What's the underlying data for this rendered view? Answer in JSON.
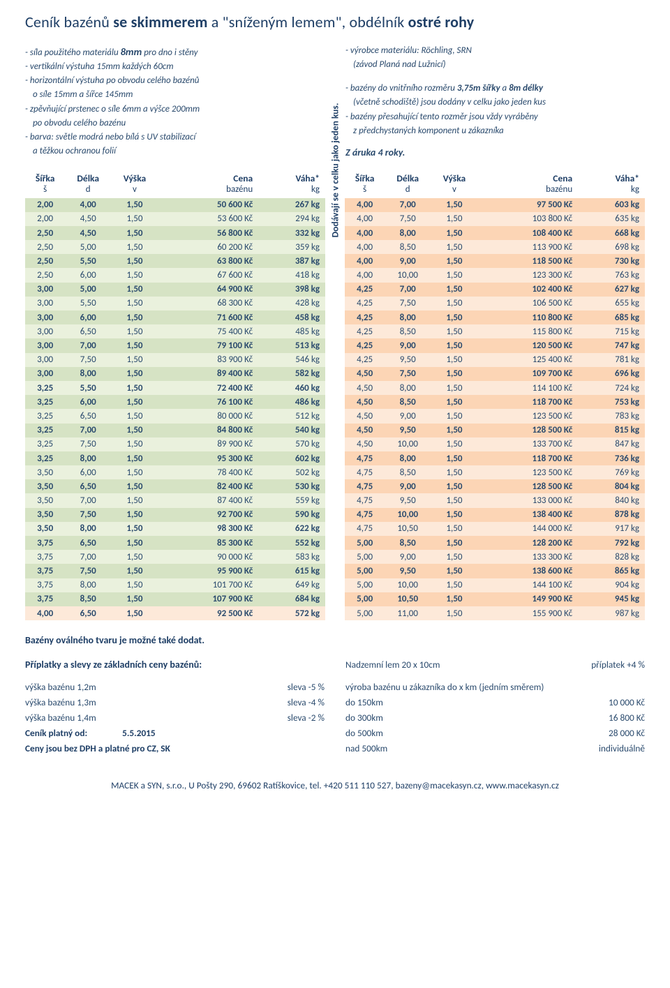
{
  "title_parts": [
    "Ceník bazénů ",
    "se skimmerem",
    " a \"sníženým lemem\", obdélník ",
    "ostré rohy"
  ],
  "specs_left": [
    {
      "t": "- síla použitého materiálu  ",
      "big": "8mm",
      "after": "  pro dno i stěny"
    },
    {
      "t": "- vertikální výstuha 15mm každých 60cm"
    },
    {
      "t": "- horizontální výstuha po obvodu celého bazénů",
      "ind_after": "o síle 15mm a šířce 145mm"
    },
    {
      "t": "- zpěvňující prstenec o síle 6mm a výšce 200mm",
      "ind_after": "po obvodu celého bazénu"
    },
    {
      "t": "- barva: světle modrá nebo bílá s UV stabilizací",
      "ind_after": "a těžkou ochranou folií"
    }
  ],
  "specs_right": [
    {
      "t": "- výrobce materiálu: Röchling, SRN",
      "ind_after": "(závod Planá nad Lužnicí)"
    },
    {
      "gap": true
    },
    {
      "t": "- bazény do vnitřního rozměru  ",
      "bi": "3,75m šířky",
      "mid": "  a  ",
      "bi2": "8m délky",
      "ind_after": "(včetně schodiště) jsou dodány v celku jako jeden kus"
    },
    {
      "t": "- bazény přesahující tento rozměr jsou vždy vyráběny",
      "ind_after": "z předchystaných komponent u zákazníka"
    }
  ],
  "zaruka": "Z áruka 4 roky.",
  "headers": {
    "sirka": "Šířka",
    "delka": "Délka",
    "vyska": "Výška",
    "cena": "Cena",
    "vaha": "Váha*",
    "s": "š",
    "d": "d",
    "v": "v",
    "bazenu": "bazénu",
    "kg": "kg"
  },
  "vtext": "Dodávají se v celku jako jeden kus.",
  "colors": {
    "g_dark": "#d6e3c4",
    "g_light": "#eaf1dd",
    "o_dark": "#fcd5b5",
    "o_light": "#fde9d9"
  },
  "left": [
    {
      "s": "2,00",
      "d": "4,00",
      "v": "1,50",
      "c": "50 600 Kč",
      "w": "267 kg",
      "bold": true,
      "bg": "g_dark"
    },
    {
      "s": "2,00",
      "d": "4,50",
      "v": "1,50",
      "c": "53 600 Kč",
      "w": "294 kg",
      "bg": "g_light"
    },
    {
      "s": "2,50",
      "d": "4,50",
      "v": "1,50",
      "c": "56 800 Kč",
      "w": "332 kg",
      "bold": true,
      "bg": "g_dark"
    },
    {
      "s": "2,50",
      "d": "5,00",
      "v": "1,50",
      "c": "60 200 Kč",
      "w": "359 kg",
      "bg": "g_light"
    },
    {
      "s": "2,50",
      "d": "5,50",
      "v": "1,50",
      "c": "63 800 Kč",
      "w": "387 kg",
      "bold": true,
      "bg": "g_dark"
    },
    {
      "s": "2,50",
      "d": "6,00",
      "v": "1,50",
      "c": "67 600 Kč",
      "w": "418 kg",
      "bg": "g_light"
    },
    {
      "s": "3,00",
      "d": "5,00",
      "v": "1,50",
      "c": "64 900 Kč",
      "w": "398 kg",
      "bold": true,
      "bg": "g_dark"
    },
    {
      "s": "3,00",
      "d": "5,50",
      "v": "1,50",
      "c": "68 300 Kč",
      "w": "428 kg",
      "bg": "g_light"
    },
    {
      "s": "3,00",
      "d": "6,00",
      "v": "1,50",
      "c": "71 600 Kč",
      "w": "458 kg",
      "bold": true,
      "bg": "g_dark"
    },
    {
      "s": "3,00",
      "d": "6,50",
      "v": "1,50",
      "c": "75 400 Kč",
      "w": "485 kg",
      "bg": "g_light"
    },
    {
      "s": "3,00",
      "d": "7,00",
      "v": "1,50",
      "c": "79 100 Kč",
      "w": "513 kg",
      "bold": true,
      "bg": "g_dark"
    },
    {
      "s": "3,00",
      "d": "7,50",
      "v": "1,50",
      "c": "83 900 Kč",
      "w": "546 kg",
      "bg": "g_light"
    },
    {
      "s": "3,00",
      "d": "8,00",
      "v": "1,50",
      "c": "89 400 Kč",
      "w": "582 kg",
      "bold": true,
      "bg": "g_dark"
    },
    {
      "s": "3,25",
      "d": "5,50",
      "v": "1,50",
      "c": "72 400 Kč",
      "w": "460 kg",
      "bold": true,
      "bg": "g_light"
    },
    {
      "s": "3,25",
      "d": "6,00",
      "v": "1,50",
      "c": "76 100 Kč",
      "w": "486 kg",
      "bold": true,
      "bg": "g_dark"
    },
    {
      "s": "3,25",
      "d": "6,50",
      "v": "1,50",
      "c": "80 000 Kč",
      "w": "512 kg",
      "bg": "g_light"
    },
    {
      "s": "3,25",
      "d": "7,00",
      "v": "1,50",
      "c": "84 800 Kč",
      "w": "540 kg",
      "bold": true,
      "bg": "g_dark"
    },
    {
      "s": "3,25",
      "d": "7,50",
      "v": "1,50",
      "c": "89 900 Kč",
      "w": "570 kg",
      "bg": "g_light"
    },
    {
      "s": "3,25",
      "d": "8,00",
      "v": "1,50",
      "c": "95 300 Kč",
      "w": "602 kg",
      "bold": true,
      "bg": "g_dark"
    },
    {
      "s": "3,50",
      "d": "6,00",
      "v": "1,50",
      "c": "78 400 Kč",
      "w": "502 kg",
      "bg": "g_light"
    },
    {
      "s": "3,50",
      "d": "6,50",
      "v": "1,50",
      "c": "82 400 Kč",
      "w": "530 kg",
      "bold": true,
      "bg": "g_dark"
    },
    {
      "s": "3,50",
      "d": "7,00",
      "v": "1,50",
      "c": "87 400 Kč",
      "w": "559 kg",
      "bg": "g_light"
    },
    {
      "s": "3,50",
      "d": "7,50",
      "v": "1,50",
      "c": "92 700 Kč",
      "w": "590 kg",
      "bold": true,
      "bg": "g_dark"
    },
    {
      "s": "3,50",
      "d": "8,00",
      "v": "1,50",
      "c": "98 300 Kč",
      "w": "622 kg",
      "bold": true,
      "bg": "g_light"
    },
    {
      "s": "3,75",
      "d": "6,50",
      "v": "1,50",
      "c": "85 300 Kč",
      "w": "552 kg",
      "bold": true,
      "bg": "g_dark"
    },
    {
      "s": "3,75",
      "d": "7,00",
      "v": "1,50",
      "c": "90 000 Kč",
      "w": "583 kg",
      "bg": "g_light"
    },
    {
      "s": "3,75",
      "d": "7,50",
      "v": "1,50",
      "c": "95 900 Kč",
      "w": "615 kg",
      "bold": true,
      "bg": "g_dark"
    },
    {
      "s": "3,75",
      "d": "8,00",
      "v": "1,50",
      "c": "101 700 Kč",
      "w": "649 kg",
      "bg": "g_light"
    },
    {
      "s": "3,75",
      "d": "8,50",
      "v": "1,50",
      "c": "107 900 Kč",
      "w": "684 kg",
      "bold": true,
      "bg": "g_dark"
    },
    {
      "s": "4,00",
      "d": "6,50",
      "v": "1,50",
      "c": "92 500 Kč",
      "w": "572 kg",
      "bold": true,
      "bg": "o_light"
    }
  ],
  "right": [
    {
      "s": "4,00",
      "d": "7,00",
      "v": "1,50",
      "c": "97 500 Kč",
      "w": "603 kg",
      "bold": true,
      "bg": "o_dark"
    },
    {
      "s": "4,00",
      "d": "7,50",
      "v": "1,50",
      "c": "103 800 Kč",
      "w": "635 kg",
      "bg": "o_light"
    },
    {
      "s": "4,00",
      "d": "8,00",
      "v": "1,50",
      "c": "108 400 Kč",
      "w": "668 kg",
      "bold": true,
      "bg": "o_dark"
    },
    {
      "s": "4,00",
      "d": "8,50",
      "v": "1,50",
      "c": "113 900 Kč",
      "w": "698 kg",
      "bg": "o_light"
    },
    {
      "s": "4,00",
      "d": "9,00",
      "v": "1,50",
      "c": "118 500 Kč",
      "w": "730 kg",
      "bold": true,
      "bg": "o_dark"
    },
    {
      "s": "4,00",
      "d": "10,00",
      "v": "1,50",
      "c": "123 300 Kč",
      "w": "763 kg",
      "bg": "o_light"
    },
    {
      "s": "4,25",
      "d": "7,00",
      "v": "1,50",
      "c": "102 400 Kč",
      "w": "627 kg",
      "bold": true,
      "bg": "o_dark"
    },
    {
      "s": "4,25",
      "d": "7,50",
      "v": "1,50",
      "c": "106 500 Kč",
      "w": "655 kg",
      "bg": "o_light"
    },
    {
      "s": "4,25",
      "d": "8,00",
      "v": "1,50",
      "c": "110 800 Kč",
      "w": "685 kg",
      "bold": true,
      "bg": "o_dark"
    },
    {
      "s": "4,25",
      "d": "8,50",
      "v": "1,50",
      "c": "115 800 Kč",
      "w": "715 kg",
      "bg": "o_light"
    },
    {
      "s": "4,25",
      "d": "9,00",
      "v": "1,50",
      "c": "120 500 Kč",
      "w": "747 kg",
      "bold": true,
      "bg": "o_dark"
    },
    {
      "s": "4,25",
      "d": "9,50",
      "v": "1,50",
      "c": "125 400 Kč",
      "w": "781 kg",
      "bg": "o_light"
    },
    {
      "s": "4,50",
      "d": "7,50",
      "v": "1,50",
      "c": "109 700 Kč",
      "w": "696 kg",
      "bold": true,
      "bg": "o_dark"
    },
    {
      "s": "4,50",
      "d": "8,00",
      "v": "1,50",
      "c": "114 100 Kč",
      "w": "724 kg",
      "bg": "o_light"
    },
    {
      "s": "4,50",
      "d": "8,50",
      "v": "1,50",
      "c": "118 700 Kč",
      "w": "753 kg",
      "bold": true,
      "bg": "o_dark"
    },
    {
      "s": "4,50",
      "d": "9,00",
      "v": "1,50",
      "c": "123 500 Kč",
      "w": "783 kg",
      "bg": "o_light"
    },
    {
      "s": "4,50",
      "d": "9,50",
      "v": "1,50",
      "c": "128 500 Kč",
      "w": "815 kg",
      "bold": true,
      "bg": "o_dark"
    },
    {
      "s": "4,50",
      "d": "10,00",
      "v": "1,50",
      "c": "133 700 Kč",
      "w": "847 kg",
      "bg": "o_light"
    },
    {
      "s": "4,75",
      "d": "8,00",
      "v": "1,50",
      "c": "118 700 Kč",
      "w": "736 kg",
      "bold": true,
      "bg": "o_dark"
    },
    {
      "s": "4,75",
      "d": "8,50",
      "v": "1,50",
      "c": "123 500 Kč",
      "w": "769 kg",
      "bg": "o_light"
    },
    {
      "s": "4,75",
      "d": "9,00",
      "v": "1,50",
      "c": "128 500 Kč",
      "w": "804 kg",
      "bold": true,
      "bg": "o_dark"
    },
    {
      "s": "4,75",
      "d": "9,50",
      "v": "1,50",
      "c": "133 000 Kč",
      "w": "840 kg",
      "bg": "o_light"
    },
    {
      "s": "4,75",
      "d": "10,00",
      "v": "1,50",
      "c": "138 400 Kč",
      "w": "878 kg",
      "bold": true,
      "bg": "o_dark"
    },
    {
      "s": "4,75",
      "d": "10,50",
      "v": "1,50",
      "c": "144 000 Kč",
      "w": "917 kg",
      "bg": "o_light"
    },
    {
      "s": "5,00",
      "d": "8,50",
      "v": "1,50",
      "c": "128 200 Kč",
      "w": "792 kg",
      "bold": true,
      "bg": "o_dark"
    },
    {
      "s": "5,00",
      "d": "9,00",
      "v": "1,50",
      "c": "133 300 Kč",
      "w": "828 kg",
      "bg": "o_light"
    },
    {
      "s": "5,00",
      "d": "9,50",
      "v": "1,50",
      "c": "138 600 Kč",
      "w": "865 kg",
      "bold": true,
      "bg": "o_dark"
    },
    {
      "s": "5,00",
      "d": "10,00",
      "v": "1,50",
      "c": "144 100 Kč",
      "w": "904 kg",
      "bg": "o_light"
    },
    {
      "s": "5,00",
      "d": "10,50",
      "v": "1,50",
      "c": "149 900 Kč",
      "w": "945 kg",
      "bold": true,
      "bg": "o_dark"
    },
    {
      "s": "5,00",
      "d": "11,00",
      "v": "1,50",
      "c": "155 900 Kč",
      "w": "987 kg",
      "bg": "o_light"
    }
  ],
  "oval_note": "Bazény oválného tvaru je možné také dodat.",
  "disc_title": "Příplatky a slevy ze základních ceny bazénů:",
  "disc_left": [
    {
      "l": "výška bazénu 1,2m",
      "r": "sleva   -5 %"
    },
    {
      "l": "výška bazénu 1,3m",
      "r": "sleva   -4 %"
    },
    {
      "l": "výška bazénu 1,4m",
      "r": "sleva   -2 %"
    }
  ],
  "valid_from": {
    "l": "Ceník platný od:",
    "d": "5.5.2015"
  },
  "no_dph": "Ceny jsou bez DPH a platné pro CZ, SK",
  "lem": {
    "l": "Nadzemní lem 20 x 10cm",
    "r": "příplatek  +4 %"
  },
  "travel_title": "výroba bazénu u zákazníka do x km (jedním směrem)",
  "travel": [
    {
      "l": "do 150km",
      "r": "10 000 Kč"
    },
    {
      "l": "do 300km",
      "r": "16 800 Kč"
    },
    {
      "l": "do 500km",
      "r": "28 000 Kč"
    },
    {
      "l": "nad 500km",
      "r": "individuálně"
    }
  ],
  "bottom": "MACEK a SYN, s.r.o., U Pošty 290, 69602 Ratíškovice, tel. +420 511 110 527, bazeny@macekasyn.cz, www.macekasyn.cz"
}
